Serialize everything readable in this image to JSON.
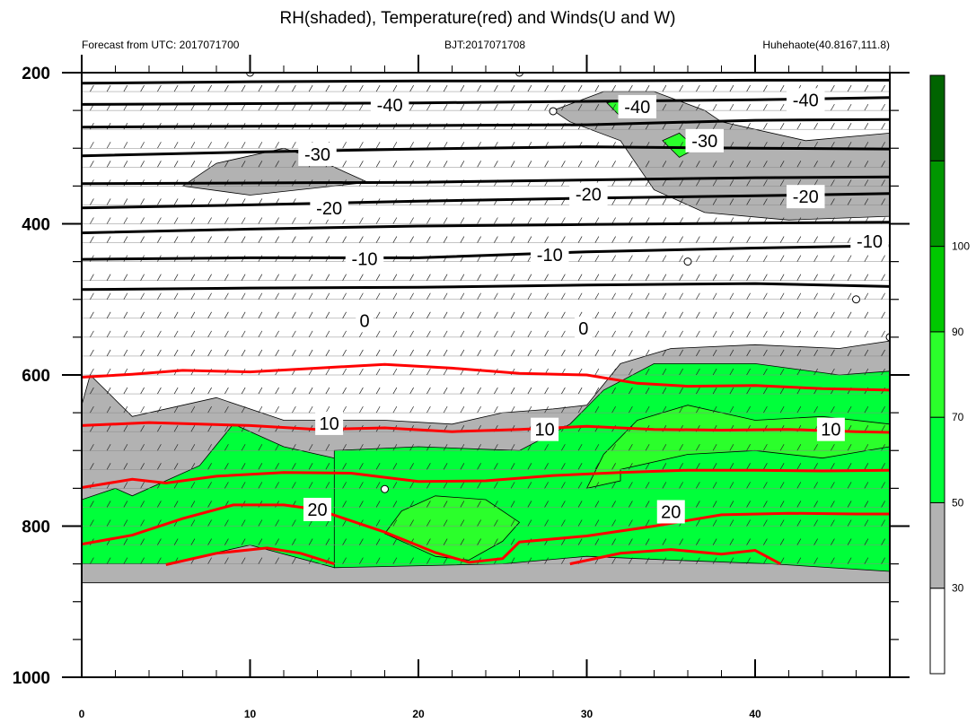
{
  "chart_data": {
    "type": "heatmap",
    "title": "RH(shaded), Temperature(red) and Winds(U and W)",
    "left_string": "Forecast from UTC: 2017071700",
    "center_string": "BJT:2017071708",
    "right_string": "Huhehaote(40.8167,111.8)",
    "x_ticks": [
      "0",
      "10",
      "20",
      "30",
      "40"
    ],
    "y_ticks": [
      "200",
      "400",
      "600",
      "800",
      "1000"
    ],
    "xlim": [
      0,
      48
    ],
    "ylim": [
      200,
      1000
    ],
    "y_inverted": true,
    "rh_levels": [
      "30",
      "50",
      "70",
      "90",
      "100"
    ],
    "rh_colors": [
      "#ffffff",
      "#b2b2b2",
      "#00ff3a",
      "#2bff2b",
      "#00c800",
      "#009600",
      "#006400"
    ],
    "temperature_color": "#ff0000",
    "contour_color": "#000000",
    "wind_color": "#000000",
    "rh_regions": [
      {
        "level": "30-50",
        "color": "#b2b2b2",
        "points": [
          [
            6,
            350
          ],
          [
            8,
            320
          ],
          [
            12,
            300
          ],
          [
            14,
            315
          ],
          [
            17,
            345
          ],
          [
            10,
            362
          ]
        ]
      },
      {
        "level": "30-50",
        "color": "#b2b2b2",
        "points": [
          [
            28,
            250
          ],
          [
            31,
            225
          ],
          [
            34,
            225
          ],
          [
            37,
            250
          ],
          [
            38,
            265
          ],
          [
            43,
            290
          ],
          [
            48,
            280
          ],
          [
            48,
            390
          ],
          [
            42,
            395
          ],
          [
            37,
            385
          ],
          [
            34,
            355
          ],
          [
            32,
            290
          ],
          [
            29,
            265
          ]
        ]
      },
      {
        "level": "30-50",
        "color": "#b2b2b2",
        "points": [
          [
            0,
            640
          ],
          [
            0.5,
            600
          ],
          [
            3,
            655
          ],
          [
            8,
            630
          ],
          [
            12,
            660
          ],
          [
            18,
            660
          ],
          [
            22,
            665
          ],
          [
            25,
            650
          ],
          [
            28,
            645
          ],
          [
            30,
            640
          ],
          [
            32,
            585
          ],
          [
            35,
            565
          ],
          [
            40,
            560
          ],
          [
            45,
            565
          ],
          [
            48,
            555
          ],
          [
            48,
            875
          ],
          [
            0,
            875
          ]
        ]
      },
      {
        "level": "50-70",
        "color": "#00ff3a",
        "points": [
          [
            0,
            765
          ],
          [
            2,
            750
          ],
          [
            3,
            760
          ],
          [
            7,
            720
          ],
          [
            9,
            665
          ],
          [
            12,
            695
          ],
          [
            16,
            715
          ],
          [
            15,
            855
          ],
          [
            10,
            825
          ],
          [
            5,
            850
          ],
          [
            0,
            850
          ]
        ]
      },
      {
        "level": "50-70",
        "color": "#00ff3a",
        "points": [
          [
            15,
            700
          ],
          [
            20,
            695
          ],
          [
            26,
            700
          ],
          [
            29,
            665
          ],
          [
            31,
            620
          ],
          [
            34,
            585
          ],
          [
            40,
            585
          ],
          [
            45,
            600
          ],
          [
            48,
            595
          ],
          [
            48,
            860
          ],
          [
            41,
            850
          ],
          [
            35,
            845
          ],
          [
            30,
            840
          ],
          [
            25,
            850
          ],
          [
            15,
            855
          ]
        ]
      },
      {
        "level": "70-90",
        "color": "#2bff2b",
        "points": [
          [
            19,
            780
          ],
          [
            21,
            760
          ],
          [
            24,
            765
          ],
          [
            26,
            795
          ],
          [
            25,
            820
          ],
          [
            23,
            845
          ],
          [
            21,
            840
          ],
          [
            18,
            810
          ]
        ]
      },
      {
        "level": "70-90",
        "color": "#2bff2b",
        "points": [
          [
            30,
            750
          ],
          [
            31,
            705
          ],
          [
            33,
            660
          ],
          [
            36,
            640
          ],
          [
            40,
            660
          ],
          [
            44,
            655
          ],
          [
            48,
            665
          ],
          [
            48,
            695
          ],
          [
            44,
            710
          ],
          [
            40,
            700
          ],
          [
            36,
            705
          ],
          [
            32,
            725
          ],
          [
            32,
            740
          ]
        ]
      },
      {
        "level": "70-90",
        "color": "#2bff2b",
        "points": [
          [
            31.2,
            240
          ],
          [
            32.8,
            232
          ],
          [
            33,
            252
          ],
          [
            32,
            258
          ]
        ]
      },
      {
        "level": "70-90",
        "color": "#2bff2b",
        "points": [
          [
            34.5,
            290
          ],
          [
            35.5,
            280
          ],
          [
            36.5,
            300
          ],
          [
            35.5,
            312
          ]
        ]
      }
    ],
    "temperature_contours": [
      {
        "level": null,
        "points": [
          [
            0,
            603
          ],
          [
            3,
            599
          ],
          [
            6,
            594
          ],
          [
            10,
            596
          ],
          [
            14,
            591
          ],
          [
            18,
            586
          ],
          [
            22,
            591
          ],
          [
            26,
            598
          ],
          [
            30,
            600
          ],
          [
            33,
            611
          ],
          [
            36,
            615
          ],
          [
            40,
            614
          ],
          [
            44,
            618
          ],
          [
            48,
            620
          ]
        ]
      },
      {
        "level": "10",
        "points": [
          [
            0,
            667
          ],
          [
            4,
            663
          ],
          [
            7,
            665
          ],
          [
            10,
            667
          ],
          [
            14,
            672
          ],
          [
            18,
            670
          ],
          [
            22,
            675
          ],
          [
            26,
            672
          ],
          [
            30,
            668
          ],
          [
            34,
            672
          ],
          [
            38,
            673
          ],
          [
            42,
            672
          ],
          [
            46,
            675
          ],
          [
            48,
            676
          ]
        ]
      },
      {
        "level": null,
        "points": [
          [
            0,
            749
          ],
          [
            3,
            738
          ],
          [
            5,
            743
          ],
          [
            8,
            734
          ],
          [
            12,
            729
          ],
          [
            16,
            730
          ],
          [
            20,
            741
          ],
          [
            24,
            740
          ],
          [
            28,
            733
          ],
          [
            32,
            729
          ],
          [
            36,
            726
          ],
          [
            40,
            726
          ],
          [
            44,
            727
          ],
          [
            48,
            726
          ]
        ]
      },
      {
        "level": "20",
        "points": [
          [
            0,
            824
          ],
          [
            3,
            812
          ],
          [
            6,
            790
          ],
          [
            9,
            772
          ],
          [
            12,
            772
          ],
          [
            14,
            778
          ],
          [
            18,
            808
          ],
          [
            21,
            835
          ],
          [
            23,
            848
          ],
          [
            25,
            843
          ],
          [
            26,
            821
          ],
          [
            30,
            813
          ],
          [
            34,
            800
          ],
          [
            38,
            785
          ],
          [
            42,
            783
          ],
          [
            46,
            784
          ],
          [
            48,
            784
          ]
        ]
      },
      {
        "level": null,
        "points": [
          [
            5,
            851
          ],
          [
            8,
            836
          ],
          [
            11,
            829
          ],
          [
            13,
            836
          ],
          [
            15,
            850
          ]
        ]
      },
      {
        "level": null,
        "points": [
          [
            29,
            850
          ],
          [
            32,
            836
          ],
          [
            35,
            831
          ],
          [
            38,
            837
          ],
          [
            40,
            832
          ],
          [
            41.5,
            850
          ]
        ]
      }
    ],
    "black_contours": [
      {
        "level": null,
        "points": [
          [
            0,
            214
          ],
          [
            10,
            212
          ],
          [
            20,
            211
          ],
          [
            30,
            211
          ],
          [
            40,
            210
          ],
          [
            48,
            210
          ]
        ]
      },
      {
        "level": "-40",
        "points": [
          [
            0,
            242
          ],
          [
            10,
            241
          ],
          [
            20,
            240
          ],
          [
            30,
            238
          ],
          [
            40,
            236
          ],
          [
            48,
            233
          ]
        ]
      },
      {
        "level": null,
        "points": [
          [
            0,
            272
          ],
          [
            10,
            271
          ],
          [
            20,
            270
          ],
          [
            30,
            269
          ],
          [
            40,
            263
          ],
          [
            48,
            262
          ]
        ]
      },
      {
        "level": "-30",
        "points": [
          [
            0,
            310
          ],
          [
            10,
            305
          ],
          [
            20,
            301
          ],
          [
            30,
            298
          ],
          [
            40,
            300
          ],
          [
            48,
            301
          ]
        ]
      },
      {
        "level": null,
        "points": [
          [
            0,
            347
          ],
          [
            10,
            346
          ],
          [
            20,
            345
          ],
          [
            30,
            342
          ],
          [
            40,
            339
          ],
          [
            48,
            338
          ]
        ]
      },
      {
        "level": "-20",
        "points": [
          [
            0,
            379
          ],
          [
            10,
            375
          ],
          [
            20,
            370
          ],
          [
            30,
            366
          ],
          [
            40,
            363
          ],
          [
            48,
            360
          ]
        ]
      },
      {
        "level": null,
        "points": [
          [
            0,
            412
          ],
          [
            10,
            407
          ],
          [
            20,
            403
          ],
          [
            30,
            401
          ],
          [
            40,
            399
          ],
          [
            48,
            398
          ]
        ]
      },
      {
        "level": "-10",
        "points": [
          [
            0,
            447
          ],
          [
            10,
            445
          ],
          [
            20,
            445
          ],
          [
            30,
            437
          ],
          [
            40,
            432
          ],
          [
            48,
            429
          ]
        ]
      },
      {
        "level": null,
        "points": [
          [
            0,
            487
          ],
          [
            10,
            485
          ],
          [
            20,
            484
          ],
          [
            30,
            481
          ],
          [
            40,
            479
          ],
          [
            48,
            483
          ]
        ]
      }
    ],
    "contour_labels": [
      {
        "text": "-40",
        "x": 18.3,
        "y": 243
      },
      {
        "text": "-40",
        "x": 33,
        "y": 245
      },
      {
        "text": "-40",
        "x": 43,
        "y": 236
      },
      {
        "text": "-30",
        "x": 14,
        "y": 308
      },
      {
        "text": "-30",
        "x": 37,
        "y": 290
      },
      {
        "text": "-20",
        "x": 14.7,
        "y": 379
      },
      {
        "text": "-20",
        "x": 30.1,
        "y": 361
      },
      {
        "text": "-20",
        "x": 43,
        "y": 364
      },
      {
        "text": "-10",
        "x": 16.8,
        "y": 446
      },
      {
        "text": "-10",
        "x": 27.8,
        "y": 441
      },
      {
        "text": "-10",
        "x": 46.8,
        "y": 423
      },
      {
        "text": "0",
        "x": 16.8,
        "y": 528
      },
      {
        "text": "0",
        "x": 29.8,
        "y": 538
      },
      {
        "text": "10",
        "x": 14.7,
        "y": 664
      },
      {
        "text": "10",
        "x": 27.5,
        "y": 672
      },
      {
        "text": "10",
        "x": 44.5,
        "y": 672
      },
      {
        "text": "20",
        "x": 14,
        "y": 778
      },
      {
        "text": "20",
        "x": 35,
        "y": 781
      }
    ],
    "wind_circles": [
      [
        10,
        200
      ],
      [
        26,
        200
      ],
      [
        28,
        251
      ],
      [
        36,
        450
      ],
      [
        46,
        500
      ],
      [
        18,
        751
      ],
      [
        48,
        550
      ]
    ]
  }
}
